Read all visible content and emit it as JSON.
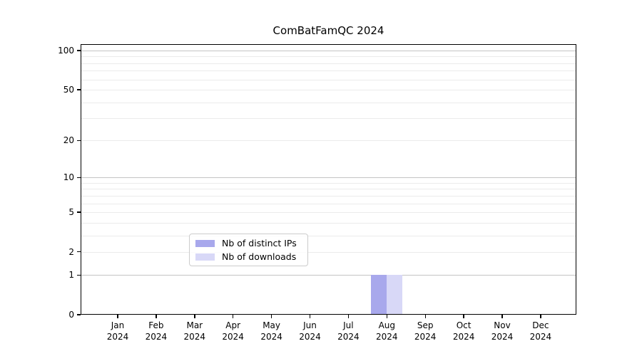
{
  "chart_data": {
    "type": "bar",
    "title": "ComBatFamQC 2024",
    "year": "2024",
    "categories": [
      "Jan",
      "Feb",
      "Mar",
      "Apr",
      "May",
      "Jun",
      "Jul",
      "Aug",
      "Sep",
      "Oct",
      "Nov",
      "Dec"
    ],
    "categories_full": [
      "Jan 2024",
      "Feb 2024",
      "Mar 2024",
      "Apr 2024",
      "May 2024",
      "Jun 2024",
      "Jul 2024",
      "Aug 2024",
      "Sep 2024",
      "Oct 2024",
      "Nov 2024",
      "Dec 2024"
    ],
    "series": [
      {
        "name": "Nb of distinct IPs",
        "color": "#a8a8ec",
        "values": [
          0,
          0,
          0,
          0,
          0,
          0,
          0,
          1,
          0,
          0,
          0,
          0
        ]
      },
      {
        "name": "Nb of downloads",
        "color": "#d8d8f7",
        "values": [
          0,
          0,
          0,
          0,
          0,
          0,
          0,
          1,
          0,
          0,
          0,
          0
        ]
      }
    ],
    "xlabel": "",
    "ylabel": "",
    "yscale": "log1p",
    "ylim": [
      0,
      112
    ],
    "y_ticks": [
      0,
      1,
      2,
      5,
      10,
      20,
      50,
      100
    ],
    "y_major_gridlines": [
      1,
      10,
      100
    ],
    "y_minor_gridlines": [
      2,
      3,
      4,
      5,
      6,
      7,
      8,
      9,
      20,
      30,
      40,
      50,
      60,
      70,
      80,
      90
    ],
    "grid": true,
    "legend_position": "lower center inside plot",
    "colors": {
      "major_grid": "#c4c4c4",
      "minor_grid": "#ebebeb",
      "axis": "#000000",
      "legend_border": "#cccccc",
      "background": "#ffffff"
    }
  }
}
